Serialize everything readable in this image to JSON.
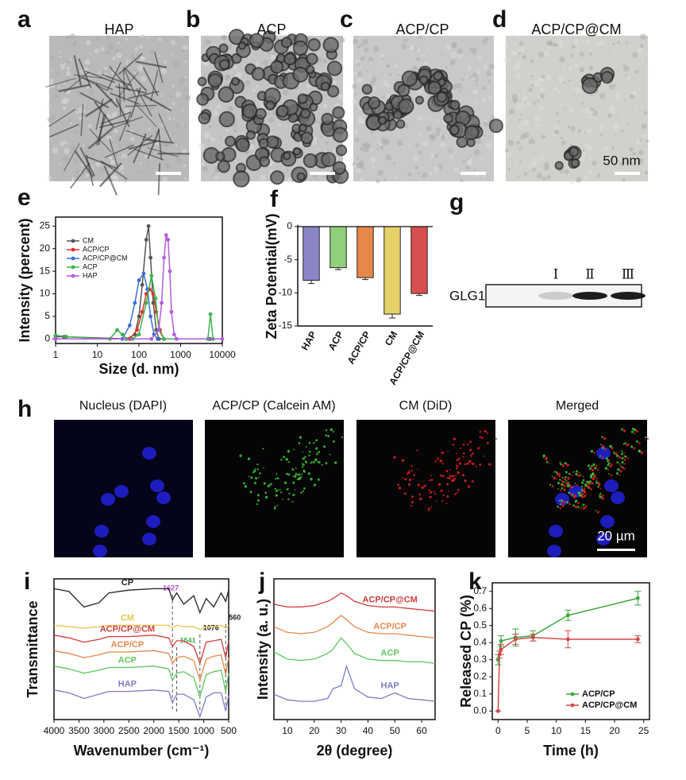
{
  "figure": {
    "panels": [
      {
        "label": "a",
        "title": "HAP"
      },
      {
        "label": "b",
        "title": "ACP"
      },
      {
        "label": "c",
        "title": "ACP/CP"
      },
      {
        "label": "d",
        "title": "ACP/CP@CM",
        "scale_text": "50 nm"
      }
    ],
    "blot": {
      "label": "g",
      "lanes": [
        "Ⅰ",
        "Ⅱ",
        "Ⅲ"
      ],
      "protein": "GLG1"
    },
    "fluorescence": {
      "label": "h",
      "titles": [
        "Nucleus (DAPI)",
        "ACP/CP (Calcein AM)",
        "CM (DiD)",
        "Merged"
      ],
      "scale_text": "20 µm"
    }
  },
  "chart_data": [
    {
      "panel": "e",
      "type": "line",
      "xlabel": "Size (d. nm)",
      "ylabel": "Intensity (percent)",
      "xscale": "log",
      "xlim": [
        1,
        10000
      ],
      "xticks": [
        1,
        10,
        100,
        1000,
        10000
      ],
      "ylim": [
        -1,
        27
      ],
      "yticks": [
        0,
        5,
        10,
        15,
        20,
        25
      ],
      "legend": "upper left",
      "marker": "circle",
      "series": [
        {
          "name": "CM",
          "color": "#555555",
          "x": [
            1,
            1.6,
            50,
            80,
            100,
            120,
            150,
            170,
            190,
            220,
            260,
            300,
            5000
          ],
          "values": [
            0.5,
            0.5,
            0,
            1,
            5,
            12,
            22,
            25,
            18,
            8,
            2,
            0,
            0
          ]
        },
        {
          "name": "ACP/CP",
          "color": "#e0302a",
          "x": [
            1,
            60,
            90,
            120,
            150,
            180,
            220,
            260,
            320,
            400
          ],
          "values": [
            0,
            0,
            2,
            6,
            10,
            11,
            10,
            6,
            2,
            0
          ]
        },
        {
          "name": "ACP/CP@CM",
          "color": "#3a6fd8",
          "x": [
            1,
            40,
            60,
            80,
            100,
            130,
            160,
            190,
            230,
            280
          ],
          "values": [
            0,
            0,
            3,
            8,
            13,
            14.5,
            11,
            5,
            1,
            0
          ]
        },
        {
          "name": "ACP",
          "color": "#3cb44b",
          "x": [
            1,
            1.8,
            20,
            30,
            40,
            50,
            70,
            100,
            150,
            200,
            250,
            300,
            400,
            4500,
            5200,
            6000
          ],
          "values": [
            0.8,
            0.5,
            0,
            2,
            1,
            0,
            0,
            1,
            8,
            14,
            9,
            2,
            0,
            0,
            5.5,
            0
          ]
        },
        {
          "name": "HAP",
          "color": "#b45be0",
          "x": [
            1,
            200,
            300,
            350,
            400,
            450,
            500,
            550,
            600,
            700,
            800,
            10000
          ],
          "values": [
            0,
            0,
            2,
            8,
            18,
            23,
            22,
            15,
            6,
            1,
            0,
            0
          ]
        }
      ]
    },
    {
      "panel": "f",
      "type": "bar",
      "ylabel": "Zeta Potential(mV)",
      "categories": [
        "HAP",
        "ACP",
        "ACP/CP",
        "CM",
        "ACP/CP@CM"
      ],
      "values": [
        -8.1,
        -6.2,
        -7.7,
        -13.2,
        -10.1
      ],
      "errors": [
        0.5,
        0.3,
        0.3,
        0.6,
        0.3
      ],
      "colors": [
        "#8a86c6",
        "#8fd17b",
        "#e8874a",
        "#e6d168",
        "#d94f4f"
      ],
      "ylim": [
        -15,
        0
      ],
      "yticks": [
        0,
        -5,
        -10,
        -15
      ]
    },
    {
      "panel": "i",
      "type": "line",
      "xlabel": "Wavenumber (cm⁻¹)",
      "ylabel": "Transmittance",
      "xlim": [
        4000,
        500
      ],
      "xticks": [
        4000,
        3500,
        3000,
        2500,
        2000,
        1500,
        1000,
        500
      ],
      "ylim": [
        0,
        100
      ],
      "legend": "inline",
      "x": [
        4000,
        3700,
        3400,
        3100,
        2900,
        2500,
        2000,
        1700,
        1627,
        1541,
        1400,
        1200,
        1076,
        950,
        800,
        650,
        560,
        500
      ],
      "annotations": [
        {
          "value": 1627,
          "color": "#b84fd8"
        },
        {
          "value": 1541,
          "color": "#3cb44b"
        },
        {
          "value": 1076,
          "color": "#222222"
        },
        {
          "value": 560,
          "color": "#222222"
        }
      ],
      "series": [
        {
          "name": "CP",
          "color": "#222222",
          "values": [
            93,
            91,
            80,
            83,
            90,
            92,
            93,
            93,
            85,
            90,
            82,
            88,
            76,
            86,
            80,
            90,
            84,
            92
          ]
        },
        {
          "name": "CM",
          "color": "#e6c84a",
          "values": [
            67,
            66,
            65,
            66,
            67,
            67,
            67,
            67,
            65,
            67,
            66,
            66,
            64,
            66,
            66,
            67,
            65,
            67
          ]
        },
        {
          "name": "ACP/CP@CM",
          "color": "#d23c3c",
          "values": [
            60,
            58,
            55,
            57,
            59,
            59,
            60,
            58,
            52,
            56,
            56,
            52,
            40,
            55,
            56,
            57,
            44,
            56
          ]
        },
        {
          "name": "ACP/CP",
          "color": "#e8874a",
          "values": [
            49,
            47,
            44,
            46,
            48,
            48,
            49,
            47,
            40,
            44,
            45,
            42,
            28,
            43,
            45,
            46,
            32,
            44
          ]
        },
        {
          "name": "ACP",
          "color": "#5cc85c",
          "values": [
            38,
            36,
            33,
            35,
            37,
            37,
            38,
            36,
            28,
            33,
            34,
            30,
            16,
            32,
            34,
            35,
            20,
            33
          ]
        },
        {
          "name": "HAP",
          "color": "#7c7cc8",
          "values": [
            21,
            19,
            15,
            18,
            20,
            20,
            21,
            20,
            12,
            18,
            18,
            14,
            2,
            16,
            19,
            19,
            6,
            17
          ]
        }
      ]
    },
    {
      "panel": "j",
      "type": "line",
      "xlabel": "2θ (degree)",
      "ylabel": "Intensity (a. u.)",
      "xlim": [
        5,
        65
      ],
      "xticks": [
        10,
        20,
        30,
        40,
        50,
        60
      ],
      "ylim": [
        0,
        100
      ],
      "legend": "inline",
      "x": [
        5,
        10,
        15,
        20,
        25,
        27,
        30,
        32,
        35,
        40,
        45,
        50,
        55,
        60,
        65
      ],
      "series": [
        {
          "name": "ACP/CP@CM",
          "color": "#d23c3c",
          "values": [
            82,
            80,
            80,
            81,
            84,
            86,
            90,
            88,
            84,
            81,
            80,
            80,
            79,
            78,
            77
          ]
        },
        {
          "name": "ACP/CP",
          "color": "#e8874a",
          "values": [
            66,
            62,
            61,
            62,
            66,
            69,
            74,
            71,
            66,
            62,
            61,
            61,
            60,
            59,
            58
          ]
        },
        {
          "name": "ACP",
          "color": "#5cc85c",
          "values": [
            48,
            43,
            42,
            43,
            47,
            50,
            58,
            54,
            47,
            43,
            42,
            42,
            41,
            41,
            40
          ]
        },
        {
          "name": "HAP",
          "color": "#7c7cc8",
          "values": [
            18,
            14,
            13,
            13,
            15,
            22,
            24,
            38,
            22,
            16,
            15,
            19,
            15,
            14,
            13
          ]
        }
      ]
    },
    {
      "panel": "k",
      "type": "line",
      "xlabel": "Time (h)",
      "ylabel": "Released CP (%)",
      "xlim": [
        -1,
        26
      ],
      "xticks": [
        0,
        5,
        10,
        15,
        20,
        25
      ],
      "ylim": [
        -0.05,
        0.75
      ],
      "yticks": [
        {
          "value": 0,
          "label": "0.0"
        },
        0.1,
        0.2,
        0.3,
        0.4,
        0.5,
        0.6,
        0.7
      ],
      "legend": "lower right",
      "marker": "circle",
      "series": [
        {
          "name": "ACP/CP",
          "color": "#3aa63a",
          "x": [
            0,
            0.5,
            3,
            6,
            12,
            24
          ],
          "values": [
            0.3,
            0.41,
            0.43,
            0.44,
            0.56,
            0.66
          ],
          "errors": [
            0.03,
            0.03,
            0.05,
            0.03,
            0.03,
            0.04
          ]
        },
        {
          "name": "ACP/CP@CM",
          "color": "#d04848",
          "x": [
            0,
            0.25,
            0.5,
            3,
            6,
            12,
            24
          ],
          "values": [
            0.0,
            0.33,
            0.36,
            0.42,
            0.43,
            0.42,
            0.42
          ],
          "errors": [
            0,
            0.02,
            0.03,
            0.03,
            0.02,
            0.05,
            0.02
          ]
        }
      ]
    }
  ]
}
